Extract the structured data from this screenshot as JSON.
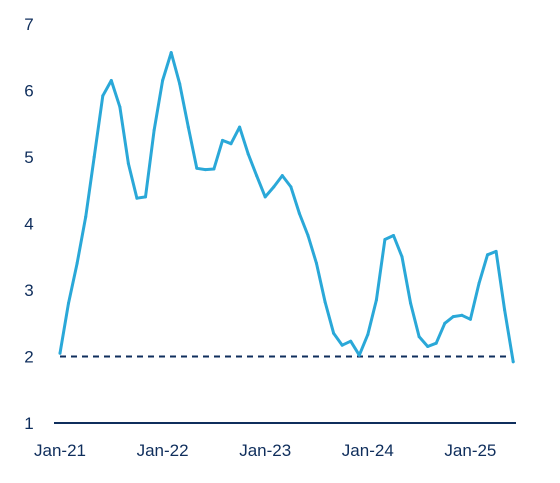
{
  "chart_data": {
    "type": "line",
    "title": "",
    "xlabel": "",
    "ylabel": "",
    "ylim": [
      1,
      7
    ],
    "yticks": [
      "1",
      "2",
      "3",
      "4",
      "5",
      "6",
      "7"
    ],
    "xticks": [
      {
        "label": "Jan-21",
        "x": "2021-01"
      },
      {
        "label": "Jan-22",
        "x": "2022-01"
      },
      {
        "label": "Jan-23",
        "x": "2023-01"
      },
      {
        "label": "Jan-24",
        "x": "2024-01"
      },
      {
        "label": "Jan-25",
        "x": "2025-01"
      }
    ],
    "grid": false,
    "reference_line": {
      "y": 2,
      "style": "dashed",
      "color": "#0f2e5c"
    },
    "series": [
      {
        "color": "#2aa8d8",
        "points": [
          [
            "2021-01",
            2.05
          ],
          [
            "2021-02",
            2.8
          ],
          [
            "2021-03",
            3.4
          ],
          [
            "2021-04",
            4.1
          ],
          [
            "2021-05",
            5.0
          ],
          [
            "2021-06",
            5.92
          ],
          [
            "2021-07",
            6.15
          ],
          [
            "2021-08",
            5.75
          ],
          [
            "2021-09",
            4.9
          ],
          [
            "2021-10",
            4.38
          ],
          [
            "2021-11",
            4.4
          ],
          [
            "2021-12",
            5.4
          ],
          [
            "2022-01",
            6.15
          ],
          [
            "2022-02",
            6.57
          ],
          [
            "2022-03",
            6.1
          ],
          [
            "2022-04",
            5.45
          ],
          [
            "2022-05",
            4.83
          ],
          [
            "2022-06",
            4.81
          ],
          [
            "2022-07",
            4.82
          ],
          [
            "2022-08",
            5.25
          ],
          [
            "2022-09",
            5.2
          ],
          [
            "2022-10",
            5.45
          ],
          [
            "2022-11",
            5.05
          ],
          [
            "2022-12",
            4.72
          ],
          [
            "2023-01",
            4.4
          ],
          [
            "2023-02",
            4.55
          ],
          [
            "2023-03",
            4.72
          ],
          [
            "2023-04",
            4.55
          ],
          [
            "2023-05",
            4.15
          ],
          [
            "2023-06",
            3.82
          ],
          [
            "2023-07",
            3.4
          ],
          [
            "2023-08",
            2.82
          ],
          [
            "2023-09",
            2.35
          ],
          [
            "2023-10",
            2.17
          ],
          [
            "2023-11",
            2.23
          ],
          [
            "2023-12",
            2.02
          ],
          [
            "2024-01",
            2.33
          ],
          [
            "2024-02",
            2.85
          ],
          [
            "2024-03",
            3.76
          ],
          [
            "2024-04",
            3.82
          ],
          [
            "2024-05",
            3.5
          ],
          [
            "2024-06",
            2.8
          ],
          [
            "2024-07",
            2.3
          ],
          [
            "2024-08",
            2.15
          ],
          [
            "2024-09",
            2.2
          ],
          [
            "2024-10",
            2.5
          ],
          [
            "2024-11",
            2.6
          ],
          [
            "2024-12",
            2.62
          ],
          [
            "2025-01",
            2.56
          ],
          [
            "2025-02",
            3.1
          ],
          [
            "2025-03",
            3.53
          ],
          [
            "2025-04",
            3.58
          ],
          [
            "2025-05",
            2.7
          ],
          [
            "2025-06",
            1.92
          ]
        ]
      }
    ]
  }
}
